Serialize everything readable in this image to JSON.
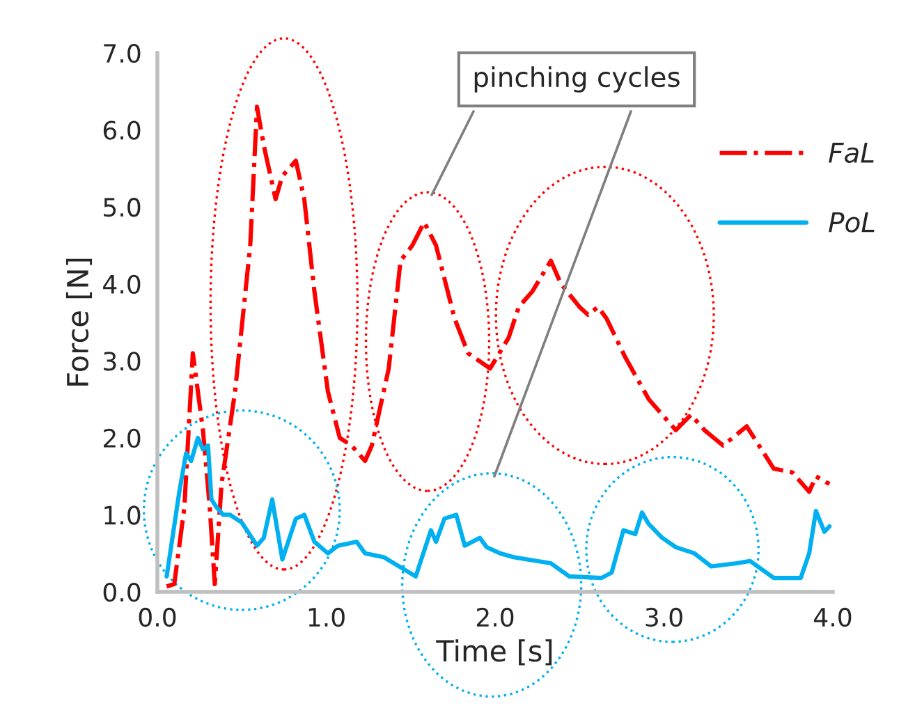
{
  "chart_data": {
    "type": "line",
    "xlabel": "Time [s]",
    "ylabel": "Force [N]",
    "xlim": [
      0,
      4
    ],
    "ylim": [
      0,
      7
    ],
    "xticks": [
      {
        "value": 0,
        "label": "0.0"
      },
      {
        "value": 1,
        "label": "1.0"
      },
      {
        "value": 2,
        "label": "2.0"
      },
      {
        "value": 3,
        "label": "3.0"
      },
      {
        "value": 4,
        "label": "4.0"
      }
    ],
    "yticks": [
      {
        "value": 0,
        "label": "0.0"
      },
      {
        "value": 1,
        "label": "1.0"
      },
      {
        "value": 2,
        "label": "2.0"
      },
      {
        "value": 3,
        "label": "3.0"
      },
      {
        "value": 4,
        "label": "4.0"
      },
      {
        "value": 5,
        "label": "5.0"
      },
      {
        "value": 6,
        "label": "6.0"
      },
      {
        "value": 7,
        "label": "7.0"
      }
    ],
    "grid": false,
    "legend": "top right",
    "marker": "none",
    "annotations": [
      "pinching cycles"
    ],
    "series": [
      {
        "name": "FaL",
        "color": "#ff0000",
        "line_style": "dashdot",
        "x": [
          0.055,
          0.1,
          0.16,
          0.21,
          0.24,
          0.27,
          0.31,
          0.34,
          0.38,
          0.46,
          0.55,
          0.59,
          0.63,
          0.7,
          0.74,
          0.82,
          0.87,
          0.93,
          1.01,
          1.08,
          1.15,
          1.23,
          1.27,
          1.37,
          1.44,
          1.51,
          1.58,
          1.65,
          1.76,
          1.84,
          1.97,
          2.08,
          2.14,
          2.22,
          2.33,
          2.39,
          2.5,
          2.55,
          2.61,
          2.66,
          2.77,
          2.91,
          3.07,
          3.16,
          3.24,
          3.35,
          3.49,
          3.65,
          3.76,
          3.86,
          3.9,
          3.98
        ],
        "values": [
          0.07,
          0.1,
          1.1,
          3.1,
          2.6,
          2.1,
          1.1,
          0.1,
          1.4,
          2.6,
          4.5,
          6.3,
          5.8,
          5.1,
          5.4,
          5.6,
          5.1,
          3.9,
          2.6,
          2.0,
          1.9,
          1.7,
          1.9,
          2.9,
          4.3,
          4.5,
          4.8,
          4.5,
          3.55,
          3.1,
          2.9,
          3.3,
          3.7,
          3.9,
          4.3,
          4.0,
          3.7,
          3.6,
          3.7,
          3.55,
          3.05,
          2.5,
          2.1,
          2.3,
          2.1,
          1.9,
          2.15,
          1.6,
          1.55,
          1.3,
          1.5,
          1.4
        ]
      },
      {
        "name": "PoL",
        "color": "#00b0f0",
        "line_style": "solid",
        "x": [
          0.055,
          0.13,
          0.17,
          0.2,
          0.24,
          0.27,
          0.3,
          0.32,
          0.35,
          0.39,
          0.43,
          0.5,
          0.59,
          0.63,
          0.68,
          0.74,
          0.82,
          0.87,
          0.93,
          1.01,
          1.07,
          1.18,
          1.23,
          1.34,
          1.53,
          1.62,
          1.65,
          1.7,
          1.77,
          1.82,
          1.91,
          1.95,
          2.03,
          2.11,
          2.33,
          2.44,
          2.63,
          2.69,
          2.76,
          2.83,
          2.87,
          2.91,
          2.99,
          3.07,
          3.18,
          3.28,
          3.43,
          3.51,
          3.65,
          3.81,
          3.86,
          3.9,
          3.95,
          3.98
        ],
        "values": [
          0.2,
          1.3,
          1.8,
          1.7,
          2.0,
          1.85,
          1.9,
          1.2,
          1.1,
          1.0,
          1.0,
          0.9,
          0.6,
          0.7,
          1.2,
          0.42,
          0.95,
          1.0,
          0.65,
          0.5,
          0.6,
          0.65,
          0.5,
          0.45,
          0.2,
          0.8,
          0.65,
          0.95,
          1.0,
          0.6,
          0.7,
          0.58,
          0.5,
          0.45,
          0.37,
          0.2,
          0.18,
          0.25,
          0.8,
          0.75,
          1.03,
          0.88,
          0.7,
          0.58,
          0.5,
          0.33,
          0.37,
          0.4,
          0.18,
          0.18,
          0.5,
          1.05,
          0.78,
          0.85
        ]
      }
    ]
  }
}
